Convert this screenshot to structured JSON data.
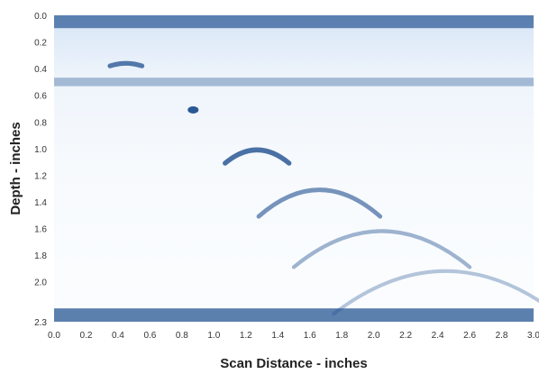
{
  "chart_data": {
    "type": "heatmap",
    "title": "",
    "xlabel": "Scan Distance - inches",
    "ylabel": "Depth - inches",
    "xlim": [
      0.0,
      3.0
    ],
    "ylim": [
      0.0,
      2.3
    ],
    "y_inverted": true,
    "grid": false,
    "x_ticks": [
      "0.0",
      "0.2",
      "0.4",
      "0.6",
      "0.8",
      "1.0",
      "1.2",
      "1.4",
      "1.6",
      "1.8",
      "2.0",
      "2.2",
      "2.4",
      "2.6",
      "2.8",
      "3.0"
    ],
    "y_ticks": [
      "0.0",
      "0.2",
      "0.4",
      "0.6",
      "0.8",
      "1.0",
      "1.2",
      "1.4",
      "1.6",
      "1.8",
      "2.0",
      "2.3"
    ],
    "colormap": {
      "low": "#ffffff",
      "high": "#1f4f8f"
    },
    "horizontal_bands": [
      {
        "depth": 0.0,
        "strength": 0.85
      },
      {
        "depth": 0.5,
        "strength": 0.45
      },
      {
        "depth": 2.27,
        "strength": 0.9
      }
    ],
    "reflections": [
      {
        "x": 0.45,
        "depth": 0.36,
        "half_width": 0.1,
        "sag": 0.02,
        "strength": 0.75
      },
      {
        "x": 0.87,
        "depth": 0.71,
        "half_width": 0.03,
        "sag": 0.0,
        "strength": 0.95
      },
      {
        "x": 1.27,
        "depth": 1.01,
        "half_width": 0.2,
        "sag": 0.1,
        "strength": 0.8
      },
      {
        "x": 1.66,
        "depth": 1.31,
        "half_width": 0.38,
        "sag": 0.2,
        "strength": 0.6
      },
      {
        "x": 2.05,
        "depth": 1.62,
        "half_width": 0.55,
        "sag": 0.27,
        "strength": 0.42
      },
      {
        "x": 2.45,
        "depth": 1.92,
        "half_width": 0.7,
        "sag": 0.32,
        "strength": 0.32
      }
    ]
  }
}
